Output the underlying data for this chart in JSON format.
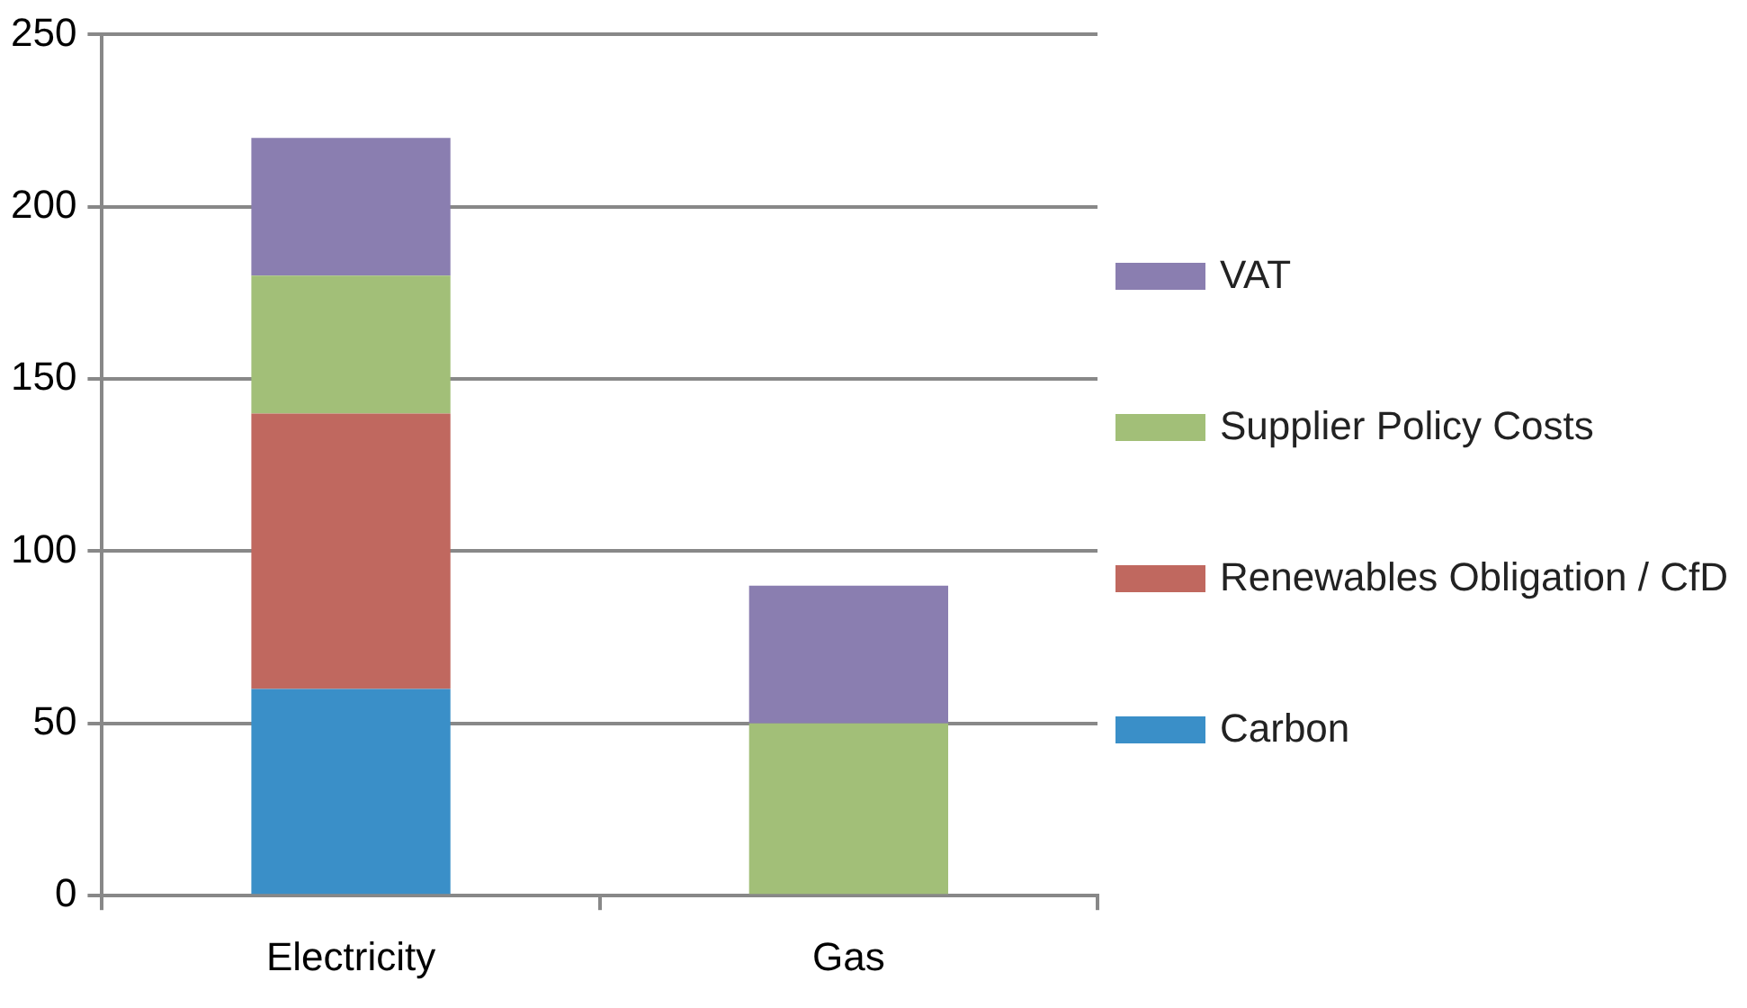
{
  "chart_data": {
    "type": "bar",
    "stacked": true,
    "categories": [
      "Electricity",
      "Gas"
    ],
    "series": [
      {
        "name": "Carbon",
        "color": "#3a8fc8",
        "values": [
          60,
          null
        ]
      },
      {
        "name": "Renewables Obligation / CfD",
        "color": "#c0685f",
        "values": [
          80,
          null
        ]
      },
      {
        "name": "Supplier Policy Costs",
        "color": "#a2bf78",
        "values": [
          40,
          50
        ]
      },
      {
        "name": "VAT",
        "color": "#8a7eb0",
        "values": [
          40,
          40
        ]
      }
    ],
    "ylim": [
      0,
      250
    ],
    "yticks": [
      0,
      50,
      100,
      150,
      200,
      250
    ],
    "grid": "y",
    "legend": "right"
  }
}
